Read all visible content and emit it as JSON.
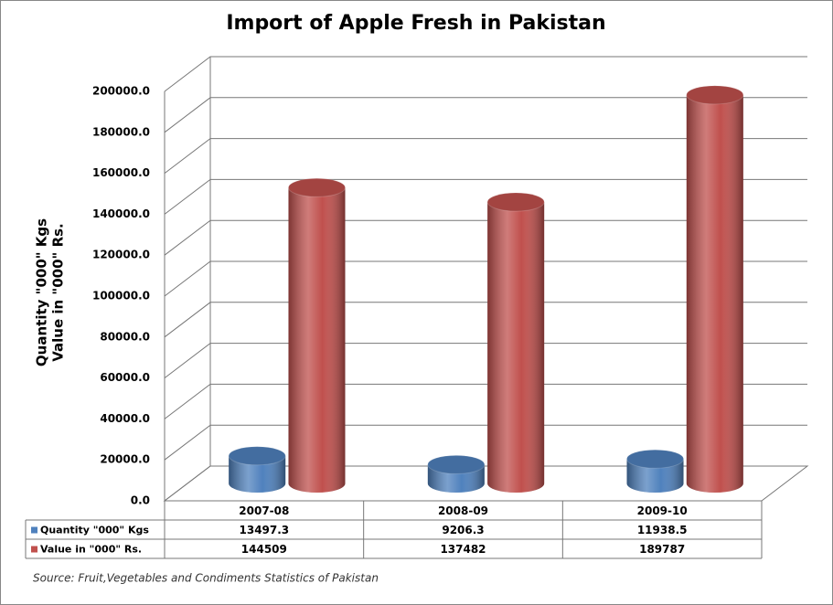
{
  "chart_data": {
    "type": "bar3d",
    "title": "Import of Apple Fresh in Pakistan",
    "y_label": [
      "Quantity \"000\" Kgs",
      "Value in \"000\" Rs."
    ],
    "categories": [
      "2007-08",
      "2008-09",
      "2009-10"
    ],
    "series": [
      {
        "name": "Quantity \"000\" Kgs",
        "color": "#4f81bd",
        "values": [
          13497.3,
          9206.3,
          11938.5
        ]
      },
      {
        "name": "Value in \"000\" Rs.",
        "color": "#c0504d",
        "values": [
          144509,
          137482,
          189787
        ]
      }
    ],
    "ylim": [
      0,
      200000
    ],
    "yticks": [
      {
        "value": 0,
        "label": "0.0"
      },
      {
        "value": 20000,
        "label": "20000.0"
      },
      {
        "value": 40000,
        "label": "40000.0"
      },
      {
        "value": 60000,
        "label": "60000.0"
      },
      {
        "value": 80000,
        "label": "80000.0"
      },
      {
        "value": 100000,
        "label": "100000.0"
      },
      {
        "value": 120000,
        "label": "120000.0"
      },
      {
        "value": 140000,
        "label": "140000.0"
      },
      {
        "value": 160000,
        "label": "160000.0"
      },
      {
        "value": 180000,
        "label": "180000.0"
      },
      {
        "value": 200000,
        "label": "200000.0"
      }
    ],
    "grid": true,
    "source": "Source: Fruit,Vegetables and Condiments Statistics of Pakistan"
  }
}
